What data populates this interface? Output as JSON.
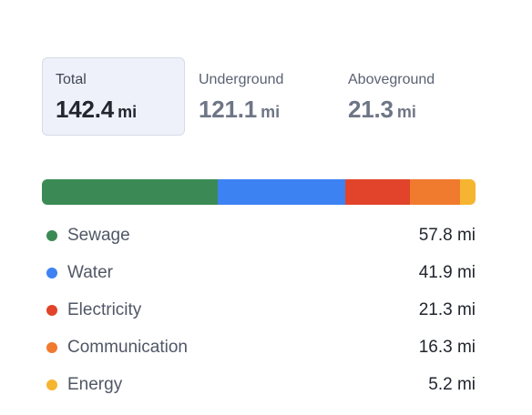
{
  "tabs": [
    {
      "label": "Total",
      "value": "142.4",
      "unit": "mi",
      "active": true
    },
    {
      "label": "Underground",
      "value": "121.1",
      "unit": "mi",
      "active": false
    },
    {
      "label": "Aboveground",
      "value": "21.3",
      "unit": "mi",
      "active": false
    }
  ],
  "breakdown": {
    "unit": "mi",
    "items": [
      {
        "name": "Sewage",
        "value": 57.8,
        "display": "57.8 mi",
        "color": "#3b8a55"
      },
      {
        "name": "Water",
        "value": 41.9,
        "display": "41.9 mi",
        "color": "#3d82f2"
      },
      {
        "name": "Electricity",
        "value": 21.3,
        "display": "21.3 mi",
        "color": "#e1442a"
      },
      {
        "name": "Communication",
        "value": 16.3,
        "display": "16.3 mi",
        "color": "#f07a2e"
      },
      {
        "name": "Energy",
        "value": 5.2,
        "display": "5.2 mi",
        "color": "#f5b531"
      }
    ]
  }
}
